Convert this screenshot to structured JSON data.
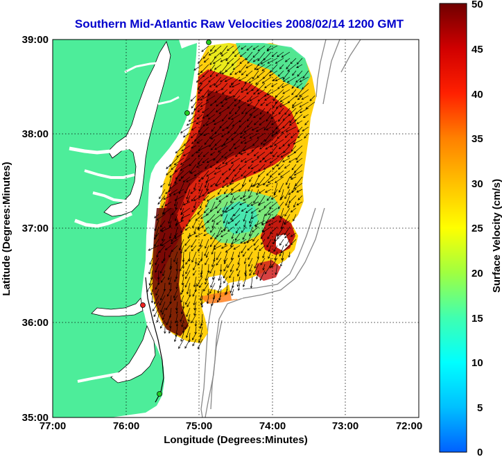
{
  "title": "Southern Mid-Atlantic Raw Velocities 2008/02/14 1200 GMT",
  "x_axis": {
    "label": "Longitude (Degrees:Minutes)",
    "ticks": [
      "77:00",
      "76:00",
      "75:00",
      "74:00",
      "73:00",
      "72:00"
    ]
  },
  "y_axis": {
    "label": "Latitude (Degrees:Minutes)",
    "ticks": [
      "39:00",
      "38:00",
      "37:00",
      "36:00",
      "35:00"
    ]
  },
  "colorbar": {
    "label": "Surface Velocity (cm/s)",
    "ticks": [
      "50",
      "45",
      "40",
      "35",
      "30",
      "25",
      "20",
      "15",
      "10",
      "5",
      "0"
    ],
    "min": 0,
    "max": 50,
    "colors": [
      "#0060ff",
      "#00c0ff",
      "#00ffff",
      "#40ffb0",
      "#a0ff40",
      "#ffff00",
      "#ffc000",
      "#ff8000",
      "#ff2000",
      "#d00000",
      "#700000"
    ]
  },
  "colors": {
    "land": "#4ded9a",
    "ocean": "#ffffff",
    "coast": "#000000",
    "bathymetry": "#888888",
    "grid": "#000000",
    "station_normal": "#22cc22",
    "station_alert": "#ee2222"
  }
}
